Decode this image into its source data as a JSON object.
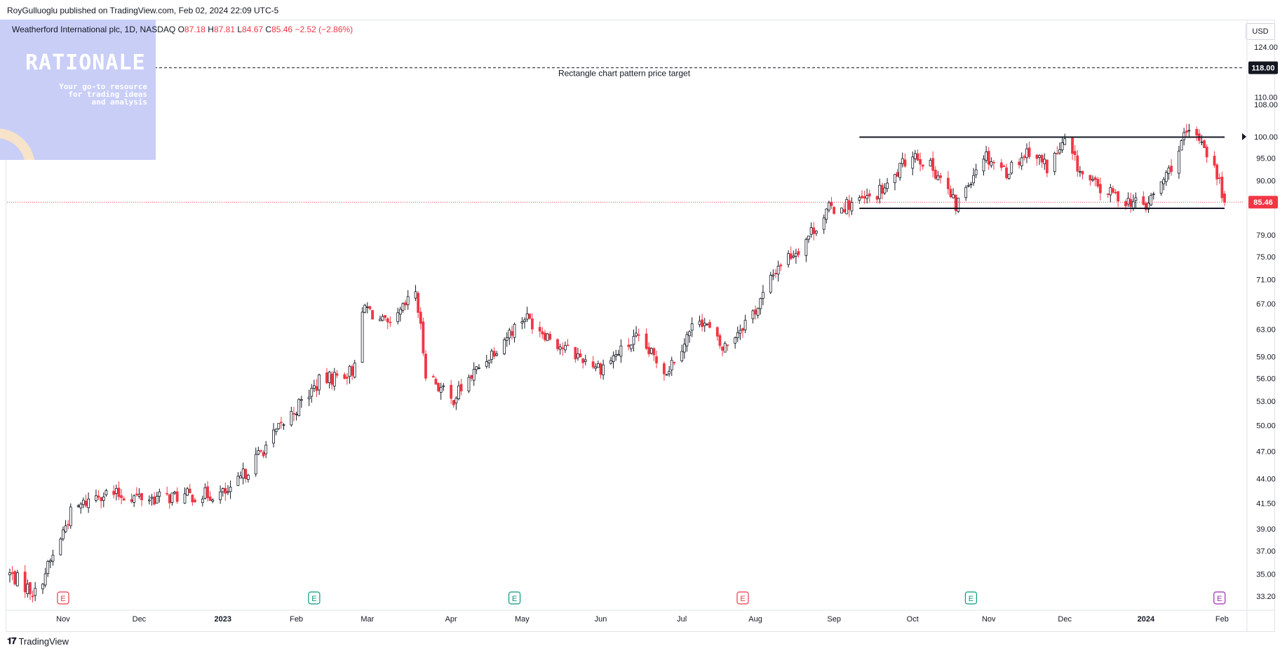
{
  "header": {
    "published": "RoyGulluoglu published on TradingView.com, Feb 02, 2024 22:09 UTC-5"
  },
  "legend": {
    "symbol": "Weatherford International plc, 1D, NASDAQ",
    "o_label": "O",
    "o_value": "87.18",
    "h_label": "H",
    "h_value": "87.81",
    "l_label": "L",
    "l_value": "84.67",
    "c_label": "C",
    "c_value": "85.46",
    "change": "−2.52 (−2.86%)"
  },
  "watermark": {
    "title": "RATIONALE",
    "subtitle_lines": [
      "Your go-to resource",
      "for trading ideas",
      "and analysis"
    ]
  },
  "currency": "USD",
  "footer": {
    "brand": "TradingView",
    "icon": "tradingview-logo-icon"
  },
  "colors": {
    "up": "#131722",
    "down": "#f23645",
    "price_line": "#f23645",
    "price_badge": "#f23645",
    "target_badge": "#131722",
    "earnings_red": "#f23645",
    "earnings_green": "#089981",
    "earnings_purple": "#9c27b0",
    "watermark_bg": "#c9cef7"
  },
  "chart_data": {
    "type": "candlestick",
    "title": "Weatherford International plc, 1D, NASDAQ",
    "y_scale": "log",
    "ylim": [
      32.2,
      132
    ],
    "y_ticks": [
      {
        "value": 124,
        "label": "124.00"
      },
      {
        "value": 110,
        "label": "110.00"
      },
      {
        "value": 108,
        "label": "108.00"
      },
      {
        "value": 100,
        "label": "100.00"
      },
      {
        "value": 95,
        "label": "95.00"
      },
      {
        "value": 90,
        "label": "90.00"
      },
      {
        "value": 79,
        "label": "79.00"
      },
      {
        "value": 75,
        "label": "75.00"
      },
      {
        "value": 71,
        "label": "71.00"
      },
      {
        "value": 67,
        "label": "67.00"
      },
      {
        "value": 63,
        "label": "63.00"
      },
      {
        "value": 59,
        "label": "59.00"
      },
      {
        "value": 56,
        "label": "56.00"
      },
      {
        "value": 53,
        "label": "53.00"
      },
      {
        "value": 50,
        "label": "50.00"
      },
      {
        "value": 47,
        "label": "47.00"
      },
      {
        "value": 44,
        "label": "44.00"
      },
      {
        "value": 41.5,
        "label": "41.50"
      },
      {
        "value": 39,
        "label": "39.00"
      },
      {
        "value": 37,
        "label": "37.00"
      },
      {
        "value": 35,
        "label": "35.00"
      },
      {
        "value": 33.2,
        "label": "33.20"
      }
    ],
    "x_ticks": [
      {
        "date": "2022-11-01",
        "label": "Nov",
        "bold": false
      },
      {
        "date": "2022-12-01",
        "label": "Dec",
        "bold": false
      },
      {
        "date": "2023-01-03",
        "label": "2023",
        "bold": true
      },
      {
        "date": "2023-02-01",
        "label": "Feb",
        "bold": false
      },
      {
        "date": "2023-03-01",
        "label": "Mar",
        "bold": false
      },
      {
        "date": "2023-04-03",
        "label": "Apr",
        "bold": false
      },
      {
        "date": "2023-05-01",
        "label": "May",
        "bold": false
      },
      {
        "date": "2023-06-01",
        "label": "Jun",
        "bold": false
      },
      {
        "date": "2023-07-03",
        "label": "Jul",
        "bold": false
      },
      {
        "date": "2023-08-01",
        "label": "Aug",
        "bold": false
      },
      {
        "date": "2023-09-01",
        "label": "Sep",
        "bold": false
      },
      {
        "date": "2023-10-02",
        "label": "Oct",
        "bold": false
      },
      {
        "date": "2023-11-01",
        "label": "Nov",
        "bold": false
      },
      {
        "date": "2023-12-01",
        "label": "Dec",
        "bold": false
      },
      {
        "date": "2024-01-02",
        "label": "2024",
        "bold": true
      },
      {
        "date": "2024-02-01",
        "label": "Feb",
        "bold": false
      }
    ],
    "price_path": [
      {
        "date": "2022-10-11",
        "close": 35.0
      },
      {
        "date": "2022-10-21",
        "close": 33.4
      },
      {
        "date": "2022-10-28",
        "close": 36.5
      },
      {
        "date": "2022-11-04",
        "close": 40.5
      },
      {
        "date": "2022-11-15",
        "close": 42.5
      },
      {
        "date": "2022-12-06",
        "close": 42.0
      },
      {
        "date": "2023-01-06",
        "close": 42.5
      },
      {
        "date": "2023-01-25",
        "close": 49.5
      },
      {
        "date": "2023-02-10",
        "close": 55.5
      },
      {
        "date": "2023-02-23",
        "close": 57.0
      },
      {
        "date": "2023-02-28",
        "close": 66.5
      },
      {
        "date": "2023-03-10",
        "close": 63.0
      },
      {
        "date": "2023-03-20",
        "close": 69.0
      },
      {
        "date": "2023-03-24",
        "close": 57.0
      },
      {
        "date": "2023-04-03",
        "close": 53.0
      },
      {
        "date": "2023-04-20",
        "close": 60.0
      },
      {
        "date": "2023-05-02",
        "close": 65.0
      },
      {
        "date": "2023-05-18",
        "close": 60.0
      },
      {
        "date": "2023-06-01",
        "close": 57.5
      },
      {
        "date": "2023-06-15",
        "close": 61.5
      },
      {
        "date": "2023-06-27",
        "close": 57.0
      },
      {
        "date": "2023-07-10",
        "close": 65.0
      },
      {
        "date": "2023-07-19",
        "close": 60.0
      },
      {
        "date": "2023-08-02",
        "close": 66.5
      },
      {
        "date": "2023-08-10",
        "close": 73.5
      },
      {
        "date": "2023-08-18",
        "close": 76.5
      },
      {
        "date": "2023-08-30",
        "close": 84.0
      },
      {
        "date": "2023-09-14",
        "close": 86.0
      },
      {
        "date": "2023-09-22",
        "close": 88.5
      },
      {
        "date": "2023-10-02",
        "close": 96.5
      },
      {
        "date": "2023-10-12",
        "close": 91.5
      },
      {
        "date": "2023-10-19",
        "close": 84.5
      },
      {
        "date": "2023-10-30",
        "close": 96.0
      },
      {
        "date": "2023-11-08",
        "close": 92.0
      },
      {
        "date": "2023-11-17",
        "close": 97.0
      },
      {
        "date": "2023-11-24",
        "close": 93.0
      },
      {
        "date": "2023-12-01",
        "close": 98.5
      },
      {
        "date": "2023-12-08",
        "close": 91.0
      },
      {
        "date": "2023-12-15",
        "close": 88.0
      },
      {
        "date": "2024-01-02",
        "close": 84.5
      },
      {
        "date": "2024-01-10",
        "close": 91.0
      },
      {
        "date": "2024-01-18",
        "close": 100.5
      },
      {
        "date": "2024-01-24",
        "close": 99.5
      },
      {
        "date": "2024-01-31",
        "close": 89.5
      },
      {
        "date": "2024-02-02",
        "close": 85.46
      }
    ],
    "rectangle": {
      "start": "2023-09-11",
      "end": "2024-02-02",
      "top": 99.9,
      "bottom": 84.2
    },
    "target": {
      "value": 118.0,
      "label": "118.00",
      "annotation": "Rectangle chart pattern price target"
    },
    "last_price": {
      "value": 85.46,
      "label": "85.46"
    },
    "earnings": [
      {
        "date": "2022-11-01",
        "color": "red",
        "label": "E"
      },
      {
        "date": "2023-02-08",
        "color": "green",
        "label": "E"
      },
      {
        "date": "2023-04-28",
        "color": "green",
        "label": "E"
      },
      {
        "date": "2023-07-27",
        "color": "red",
        "label": "E"
      },
      {
        "date": "2023-10-25",
        "color": "green",
        "label": "E"
      },
      {
        "date": "2024-01-31",
        "color": "purple",
        "label": "E"
      }
    ]
  }
}
